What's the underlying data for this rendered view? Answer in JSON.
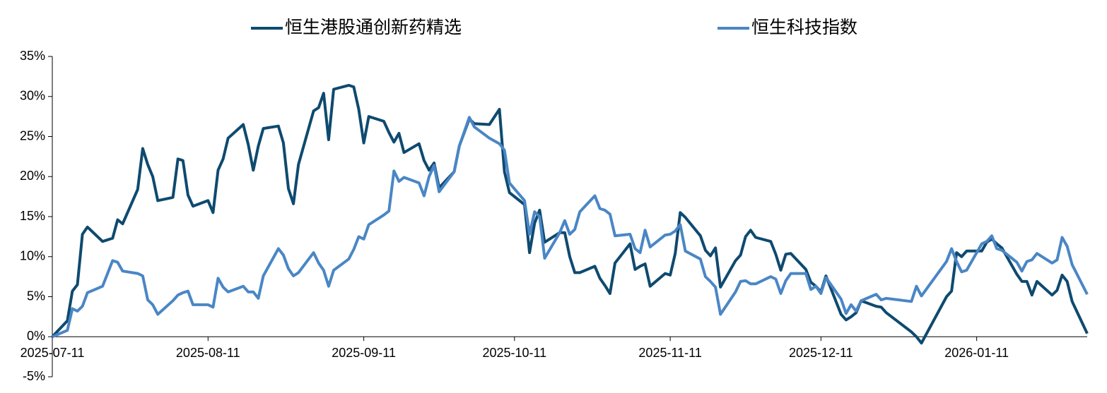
{
  "chart_data": {
    "type": "line",
    "x": [
      "2025-07-11",
      "2025-07-14",
      "2025-07-15",
      "2025-07-16",
      "2025-07-17",
      "2025-07-18",
      "2025-07-21",
      "2025-07-23",
      "2025-07-24",
      "2025-07-25",
      "2025-07-28",
      "2025-07-29",
      "2025-07-30",
      "2025-07-31",
      "2025-08-01",
      "2025-08-04",
      "2025-08-05",
      "2025-08-06",
      "2025-08-07",
      "2025-08-08",
      "2025-08-11",
      "2025-08-12",
      "2025-08-13",
      "2025-08-14",
      "2025-08-15",
      "2025-08-18",
      "2025-08-19",
      "2025-08-20",
      "2025-08-21",
      "2025-08-22",
      "2025-08-25",
      "2025-08-26",
      "2025-08-27",
      "2025-08-28",
      "2025-08-29",
      "2025-09-01",
      "2025-09-02",
      "2025-09-03",
      "2025-09-04",
      "2025-09-05",
      "2025-09-08",
      "2025-09-09",
      "2025-09-10",
      "2025-09-11",
      "2025-09-12",
      "2025-09-15",
      "2025-09-16",
      "2025-09-17",
      "2025-09-18",
      "2025-09-19",
      "2025-09-22",
      "2025-09-23",
      "2025-09-24",
      "2025-09-25",
      "2025-09-26",
      "2025-09-29",
      "2025-09-30",
      "2025-10-02",
      "2025-10-03",
      "2025-10-06",
      "2025-10-08",
      "2025-10-09",
      "2025-10-10",
      "2025-10-13",
      "2025-10-14",
      "2025-10-15",
      "2025-10-16",
      "2025-10-17",
      "2025-10-20",
      "2025-10-21",
      "2025-10-22",
      "2025-10-23",
      "2025-10-24",
      "2025-10-27",
      "2025-10-28",
      "2025-10-29",
      "2025-10-30",
      "2025-10-31",
      "2025-11-03",
      "2025-11-04",
      "2025-11-05",
      "2025-11-06",
      "2025-11-07",
      "2025-11-10",
      "2025-11-11",
      "2025-11-12",
      "2025-11-13",
      "2025-11-14",
      "2025-11-17",
      "2025-11-18",
      "2025-11-19",
      "2025-11-20",
      "2025-11-21",
      "2025-11-24",
      "2025-11-25",
      "2025-11-26",
      "2025-11-27",
      "2025-11-28",
      "2025-12-01",
      "2025-12-02",
      "2025-12-03",
      "2025-12-04",
      "2025-12-05",
      "2025-12-08",
      "2025-12-09",
      "2025-12-10",
      "2025-12-11",
      "2025-12-12",
      "2025-12-15",
      "2025-12-16",
      "2025-12-17",
      "2025-12-18",
      "2025-12-19",
      "2025-12-22",
      "2025-12-23",
      "2025-12-24",
      "2025-12-29",
      "2025-12-30",
      "2025-12-31",
      "2026-01-05",
      "2026-01-06",
      "2026-01-07",
      "2026-01-08",
      "2026-01-09",
      "2026-01-12",
      "2026-01-13",
      "2026-01-14",
      "2026-01-15",
      "2026-01-16",
      "2026-01-19",
      "2026-01-20",
      "2026-01-21",
      "2026-01-22",
      "2026-01-23",
      "2026-01-26",
      "2026-01-27",
      "2026-01-28",
      "2026-01-29",
      "2026-01-30",
      "2026-02-02"
    ],
    "series": [
      {
        "name": "恒生港股通创新药精选",
        "color": "#0e4a6f",
        "values": [
          0,
          2,
          5.7,
          6.5,
          12.8,
          13.7,
          11.9,
          12.3,
          14.6,
          14.1,
          18.4,
          23.5,
          21.5,
          20.0,
          17.0,
          17.4,
          22.2,
          22.0,
          17.7,
          16.3,
          17.0,
          15.5,
          20.8,
          22.2,
          24.8,
          26.5,
          24.0,
          20.8,
          23.8,
          26.0,
          26.3,
          24.2,
          18.5,
          16.6,
          21.5,
          28.2,
          28.6,
          30.4,
          24.6,
          30.9,
          31.4,
          31.2,
          28.4,
          24.2,
          27.5,
          26.9,
          25.5,
          24.3,
          25.4,
          23.0,
          24.1,
          22.0,
          20.8,
          21.7,
          18.6,
          20.6,
          23.8,
          27.2,
          26.6,
          26.5,
          28.4,
          20.6,
          18.0,
          16.5,
          10.5,
          14.2,
          15.8,
          11.8,
          13.0,
          13.0,
          10.0,
          8.0,
          8.0,
          8.8,
          7.3,
          6.4,
          5.4,
          9.2,
          11.6,
          8.4,
          8.8,
          9.1,
          6.3,
          7.9,
          7.7,
          10.4,
          15.5,
          14.9,
          12.6,
          10.8,
          10.1,
          11.1,
          6.2,
          9.5,
          10.2,
          12.5,
          13.3,
          12.4,
          11.9,
          10.3,
          8.3,
          10.3,
          10.4,
          8.4,
          6.8,
          6.3,
          5.6,
          7.6,
          2.8,
          2.1,
          2.5,
          3.0,
          4.5,
          3.8,
          3.7,
          3.0,
          0.6,
          0.0,
          -0.8,
          5.0,
          5.7,
          10.5,
          10.0,
          10.7,
          10.7,
          11.8,
          12.2,
          11.6,
          11.1,
          7.8,
          6.9,
          6.9,
          5.2,
          6.9,
          5.2,
          5.8,
          7.7,
          6.9,
          4.4,
          0.4
        ]
      },
      {
        "name": "恒生科技指数",
        "color": "#4a86c5",
        "values": [
          0,
          0.8,
          3.5,
          3.2,
          3.8,
          5.5,
          6.3,
          9.5,
          9.3,
          8.2,
          7.9,
          7.6,
          4.6,
          4.0,
          2.8,
          4.5,
          5.2,
          5.5,
          5.7,
          4.0,
          4.0,
          3.7,
          7.3,
          6.2,
          5.6,
          6.3,
          5.6,
          5.6,
          4.8,
          7.6,
          11.0,
          10.2,
          8.5,
          7.6,
          8.0,
          10.5,
          9.2,
          8.3,
          6.3,
          8.3,
          9.7,
          10.9,
          12.5,
          12.2,
          14.0,
          15.2,
          15.7,
          20.7,
          19.4,
          19.9,
          19.2,
          17.6,
          20.0,
          21.4,
          18.1,
          20.6,
          23.8,
          27.4,
          26.2,
          24.8,
          24.1,
          23.3,
          19.2,
          17.0,
          12.8,
          15.6,
          15.0,
          9.8,
          13.0,
          14.5,
          12.8,
          13.4,
          15.6,
          17.6,
          16.0,
          15.8,
          15.3,
          12.6,
          12.8,
          11.0,
          10.5,
          13.3,
          11.2,
          12.7,
          12.8,
          13.2,
          14.0,
          10.7,
          9.7,
          7.5,
          6.9,
          6.2,
          2.8,
          5.6,
          6.9,
          7.0,
          6.6,
          6.6,
          7.5,
          7.2,
          5.4,
          7.0,
          7.9,
          7.9,
          5.9,
          6.3,
          5.4,
          7.4,
          4.7,
          2.9,
          4.0,
          3.2,
          4.5,
          5.3,
          4.6,
          4.8,
          4.4,
          6.3,
          5.1,
          9.4,
          11.0,
          9.4,
          8.1,
          8.3,
          11.6,
          11.9,
          12.6,
          11.0,
          10.8,
          9.3,
          8.2,
          9.4,
          9.6,
          10.4,
          9.2,
          9.6,
          12.4,
          11.3,
          9.0,
          5.3
        ]
      }
    ],
    "xlim": [
      "2025-07-11",
      "2026-02-02"
    ],
    "xticks": [
      "2025-07-11",
      "2025-08-11",
      "2025-09-11",
      "2025-10-11",
      "2025-11-11",
      "2025-12-11",
      "2026-01-11"
    ],
    "ylim": [
      -5,
      35
    ],
    "yticks": [
      {
        "value": -5,
        "label": "-5%"
      },
      {
        "value": 0,
        "label": "0%"
      },
      {
        "value": 5,
        "label": "5%"
      },
      {
        "value": 10,
        "label": "10%"
      },
      {
        "value": 15,
        "label": "15%"
      },
      {
        "value": 20,
        "label": "20%"
      },
      {
        "value": 25,
        "label": "25%"
      },
      {
        "value": 30,
        "label": "30%"
      },
      {
        "value": 35,
        "label": "35%"
      }
    ],
    "legend": "top"
  }
}
